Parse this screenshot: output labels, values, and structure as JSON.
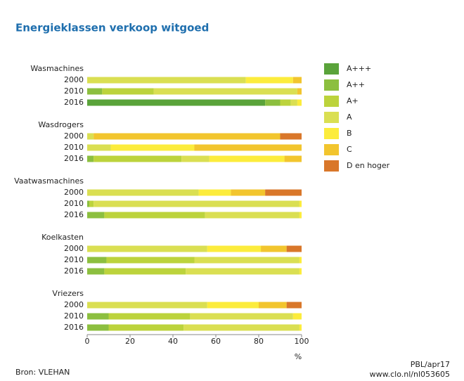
{
  "chart_data": {
    "type": "stacked-bar-horizontal",
    "title": "Energieklassen verkoop witgoed",
    "groups": [
      {
        "name": "Wasmachines",
        "categories": [
          "2000",
          "2010",
          "2016"
        ]
      },
      {
        "name": "Wasdrogers",
        "categories": [
          "2000",
          "2010",
          "2016"
        ]
      },
      {
        "name": "Vaatwasmachines",
        "categories": [
          "2000",
          "2010",
          "2016"
        ]
      },
      {
        "name": "Koelkasten",
        "categories": [
          "2000",
          "2010",
          "2016"
        ]
      },
      {
        "name": "Vriezers",
        "categories": [
          "2000",
          "2010",
          "2016"
        ]
      }
    ],
    "series": [
      {
        "name": "A+++",
        "color": "#5aa33a",
        "values": [
          0,
          0,
          83,
          0,
          0,
          0,
          0,
          0,
          0,
          0,
          0,
          0,
          0,
          0,
          0
        ]
      },
      {
        "name": "A++",
        "color": "#8cbf3f",
        "values": [
          0,
          7,
          7,
          0,
          0,
          3,
          0,
          1,
          8,
          0,
          9,
          8,
          0,
          10,
          10
        ]
      },
      {
        "name": "A+",
        "color": "#bcd33c",
        "values": [
          0,
          24,
          5,
          0,
          0,
          41,
          0,
          2,
          47,
          0,
          41,
          38,
          0,
          38,
          35
        ]
      },
      {
        "name": "A",
        "color": "#dadf52",
        "values": [
          74,
          67,
          3,
          3,
          11,
          13,
          52,
          96,
          44,
          56,
          49,
          53,
          56,
          48,
          54
        ]
      },
      {
        "name": "B",
        "color": "#fcec3c",
        "values": [
          22,
          0,
          2,
          0,
          39,
          35,
          15,
          1,
          1,
          25,
          1,
          1,
          24,
          4,
          1
        ]
      },
      {
        "name": "C",
        "color": "#f2c52e",
        "values": [
          4,
          2,
          0,
          87,
          50,
          8,
          16,
          0,
          0,
          12,
          0,
          0,
          13,
          0,
          0
        ]
      },
      {
        "name": "D en hoger",
        "color": "#d9772a",
        "values": [
          0,
          0,
          0,
          10,
          0,
          0,
          17,
          0,
          0,
          7,
          0,
          0,
          7,
          0,
          0
        ]
      }
    ],
    "xlim": [
      0,
      100
    ],
    "xticks": [
      0,
      20,
      40,
      60,
      80,
      100
    ],
    "xlabel": "%",
    "source": "Bron: VLEHAN",
    "credit": [
      "PBL/apr17",
      "www.clo.nl/nl053605"
    ]
  }
}
